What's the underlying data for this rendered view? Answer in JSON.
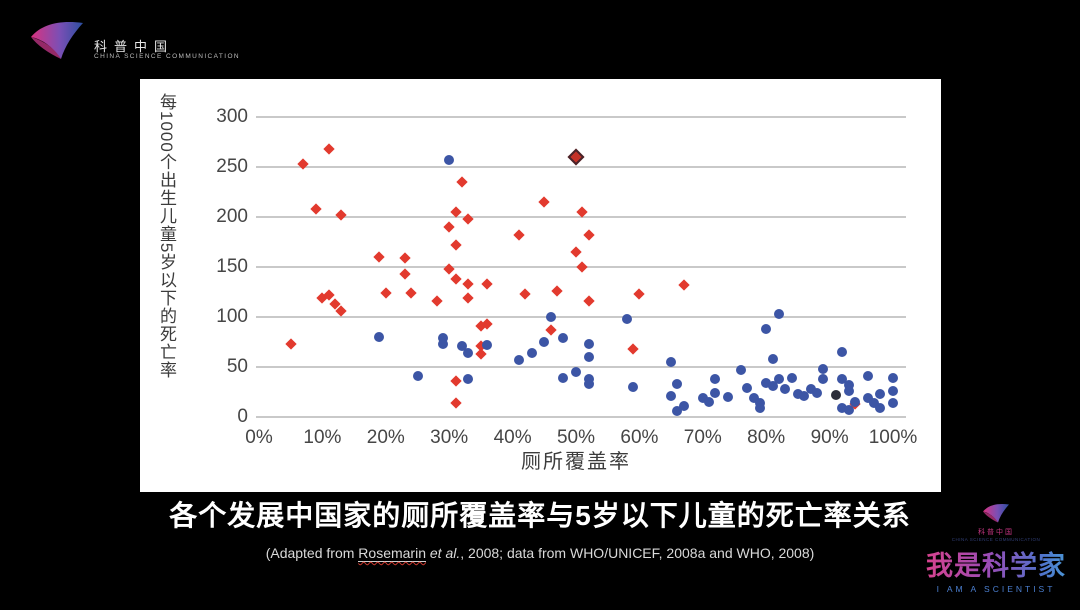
{
  "header_logo": {
    "name_cn": "科普中国",
    "name_en": "CHINA SCIENCE COMMUNICATION"
  },
  "chart_data": {
    "type": "scatter",
    "title": "",
    "xlabel": "厕所覆盖率",
    "ylabel": "每1000个出生儿童5岁以下的死亡率",
    "xlim": [
      0,
      100
    ],
    "ylim": [
      0,
      300
    ],
    "xticks": [
      "0%",
      "10%",
      "20%",
      "30%",
      "40%",
      "50%",
      "60%",
      "70%",
      "80%",
      "90%",
      "100%"
    ],
    "yticks": [
      300,
      250,
      200,
      150,
      100,
      50,
      0
    ],
    "grid": "horizontal-only",
    "legend": "none",
    "series": [
      {
        "name": "red-diamond-countries",
        "marker": "diamond",
        "color": "#e23a2e",
        "points": [
          [
            5,
            73
          ],
          [
            7,
            253
          ],
          [
            9,
            208
          ],
          [
            10,
            119
          ],
          [
            11,
            122
          ],
          [
            11,
            268
          ],
          [
            12,
            113
          ],
          [
            13,
            106
          ],
          [
            13,
            202
          ],
          [
            19,
            160
          ],
          [
            20,
            124
          ],
          [
            23,
            159
          ],
          [
            23,
            143
          ],
          [
            24,
            124
          ],
          [
            28,
            116
          ],
          [
            30,
            190
          ],
          [
            30,
            148
          ],
          [
            31,
            205
          ],
          [
            31,
            172
          ],
          [
            31,
            138
          ],
          [
            31,
            36
          ],
          [
            31,
            14
          ],
          [
            32,
            235
          ],
          [
            33,
            198
          ],
          [
            33,
            133
          ],
          [
            33,
            119
          ],
          [
            35,
            91
          ],
          [
            35,
            71
          ],
          [
            35,
            63
          ],
          [
            36,
            133
          ],
          [
            36,
            93
          ],
          [
            41,
            182
          ],
          [
            42,
            123
          ],
          [
            45,
            215
          ],
          [
            46,
            87
          ],
          [
            47,
            126
          ],
          [
            50,
            165
          ],
          [
            51,
            205
          ],
          [
            51,
            150
          ],
          [
            52,
            182
          ],
          [
            52,
            116
          ],
          [
            59,
            68
          ],
          [
            60,
            123
          ],
          [
            67,
            132
          ],
          [
            94,
            13
          ]
        ]
      },
      {
        "name": "red-diamond-outlined",
        "marker": "diamond-outlined",
        "color": "#c43127",
        "points": [
          [
            50,
            260
          ]
        ]
      },
      {
        "name": "blue-circle-countries",
        "marker": "circle",
        "color": "#3c55a5",
        "points": [
          [
            19,
            80
          ],
          [
            25,
            41
          ],
          [
            29,
            79
          ],
          [
            29,
            73
          ],
          [
            30,
            257
          ],
          [
            32,
            71
          ],
          [
            33,
            64
          ],
          [
            33,
            38
          ],
          [
            36,
            72
          ],
          [
            41,
            57
          ],
          [
            43,
            64
          ],
          [
            45,
            75
          ],
          [
            46,
            100
          ],
          [
            48,
            79
          ],
          [
            48,
            39
          ],
          [
            50,
            45
          ],
          [
            52,
            73
          ],
          [
            52,
            60
          ],
          [
            52,
            38
          ],
          [
            52,
            33
          ],
          [
            58,
            98
          ],
          [
            59,
            30
          ],
          [
            65,
            55
          ],
          [
            65,
            21
          ],
          [
            66,
            33
          ],
          [
            66,
            6
          ],
          [
            67,
            11
          ],
          [
            70,
            19
          ],
          [
            71,
            15
          ],
          [
            72,
            38
          ],
          [
            72,
            24
          ],
          [
            74,
            20
          ],
          [
            76,
            47
          ],
          [
            77,
            29
          ],
          [
            78,
            19
          ],
          [
            79,
            14
          ],
          [
            79,
            9
          ],
          [
            80,
            34
          ],
          [
            80,
            88
          ],
          [
            81,
            58
          ],
          [
            81,
            31
          ],
          [
            82,
            103
          ],
          [
            82,
            38
          ],
          [
            83,
            28
          ],
          [
            84,
            39
          ],
          [
            85,
            23
          ],
          [
            86,
            21
          ],
          [
            87,
            28
          ],
          [
            88,
            24
          ],
          [
            89,
            48
          ],
          [
            89,
            38
          ],
          [
            92,
            65
          ],
          [
            92,
            38
          ],
          [
            92,
            9
          ],
          [
            93,
            32
          ],
          [
            93,
            26
          ],
          [
            93,
            7
          ],
          [
            94,
            15
          ],
          [
            96,
            41
          ],
          [
            96,
            19
          ],
          [
            97,
            14
          ],
          [
            98,
            23
          ],
          [
            98,
            9
          ],
          [
            100,
            39
          ],
          [
            100,
            26
          ],
          [
            100,
            14
          ]
        ]
      },
      {
        "name": "dark-circle-country",
        "marker": "circle",
        "color": "#2c2e3a",
        "points": [
          [
            91,
            22
          ]
        ]
      }
    ]
  },
  "caption": {
    "title": "各个发展中国家的厕所覆盖率与5岁以下儿童的死亡率关系",
    "source_prefix": "(Adapted from ",
    "source_author": "Rosemarin",
    "source_italic": " et al.",
    "source_suffix": ", 2008; data from WHO/UNICEF, 2008a and WHO, 2008)"
  },
  "footer_logo": {
    "mini_cn": "科普中国",
    "mini_en": "CHINA SCIENCE COMMUNICATION",
    "brand_cn": "我是科学家",
    "brand_en": "I AM A SCIENTIST"
  }
}
